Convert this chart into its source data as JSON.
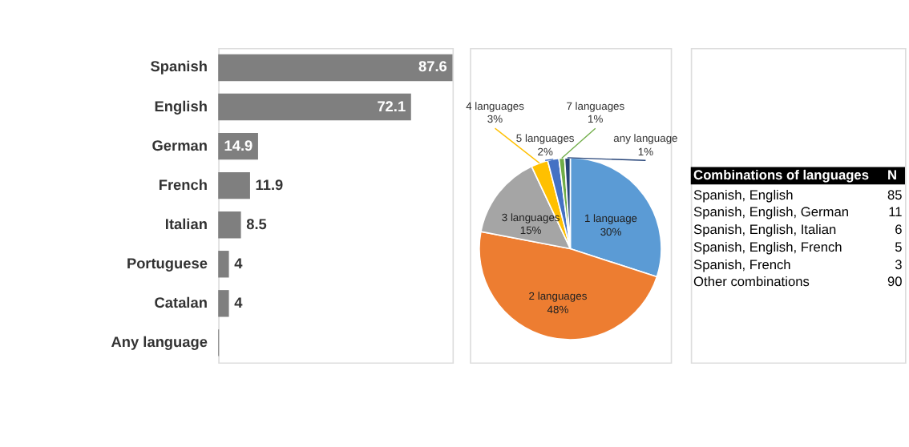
{
  "chart_data": [
    {
      "type": "bar",
      "orientation": "horizontal",
      "categories": [
        "Spanish",
        "English",
        "German",
        "French",
        "Italian",
        "Portuguese",
        "Catalan",
        "Any language"
      ],
      "values": [
        87.6,
        72.1,
        14.9,
        11.9,
        8.5,
        4,
        4,
        0.3
      ],
      "color": "#7f7f7f",
      "value_labels": [
        "87.6",
        "72.1",
        "14.9",
        "11.9",
        "8.5",
        "4",
        "4",
        null
      ]
    },
    {
      "type": "pie",
      "categories": [
        "1 language",
        "2 languages",
        "3 languages",
        "4 languages",
        "5 languages",
        "7 languages",
        "any language"
      ],
      "values": [
        30,
        48,
        15,
        3,
        2,
        1,
        1
      ],
      "colors": [
        "#5b9bd5",
        "#ed7d31",
        "#a5a5a5",
        "#ffc000",
        "#4472c4",
        "#70ad47",
        "#264478"
      ],
      "value_labels": [
        "30%",
        "48%",
        "15%",
        "3%",
        "2%",
        "1%",
        "1%"
      ]
    },
    {
      "type": "other",
      "title": "Combinations of languages",
      "ylabel": "N",
      "categories": [
        "Spanish, English",
        "Spanish, English, German",
        "Spanish, English, Italian",
        "Spanish, English, French",
        "Spanish, French",
        "Other combinations"
      ],
      "values": [
        85,
        11,
        6,
        5,
        3,
        90
      ],
      "data_labels": true
    }
  ]
}
